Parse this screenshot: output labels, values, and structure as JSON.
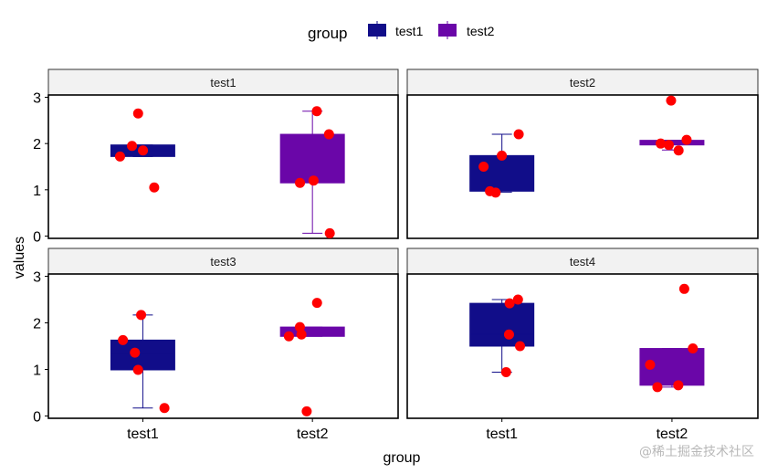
{
  "chart_data": {
    "type": "boxplot",
    "facet_by": "facet",
    "facets": [
      "test1",
      "test2",
      "test3",
      "test4"
    ],
    "categories": [
      "test1",
      "test2"
    ],
    "xlabel": "group",
    "ylabel": "values",
    "ylim": [
      -0.05,
      3.05
    ],
    "yticks": [
      0,
      1,
      2,
      3
    ],
    "legend": {
      "title": "group",
      "position": "top",
      "entries": [
        {
          "label": "test1",
          "color": "#110D89"
        },
        {
          "label": "test2",
          "color": "#6A06A8"
        }
      ]
    },
    "boxes": [
      {
        "facet": "test1",
        "group": "test1",
        "q1": 1.72,
        "median": 1.85,
        "q3": 1.97,
        "whisker_low": 1.72,
        "whisker_high": 1.97
      },
      {
        "facet": "test1",
        "group": "test2",
        "q1": 1.15,
        "median": 1.2,
        "q3": 2.2,
        "whisker_low": 0.06,
        "whisker_high": 2.7
      },
      {
        "facet": "test2",
        "group": "test1",
        "q1": 0.97,
        "median": 1.5,
        "q3": 1.74,
        "whisker_low": 0.95,
        "whisker_high": 2.2
      },
      {
        "facet": "test2",
        "group": "test2",
        "q1": 1.97,
        "median": 2.0,
        "q3": 2.07,
        "whisker_low": 1.86,
        "whisker_high": 2.07
      },
      {
        "facet": "test3",
        "group": "test1",
        "q1": 0.99,
        "median": 1.35,
        "q3": 1.63,
        "whisker_low": 0.17,
        "whisker_high": 2.17
      },
      {
        "facet": "test3",
        "group": "test2",
        "q1": 1.71,
        "median": 1.85,
        "q3": 1.91,
        "whisker_low": 1.71,
        "whisker_high": 1.91
      },
      {
        "facet": "test4",
        "group": "test1",
        "q1": 1.5,
        "median": 1.75,
        "q3": 2.42,
        "whisker_low": 0.94,
        "whisker_high": 2.5
      },
      {
        "facet": "test4",
        "group": "test2",
        "q1": 0.66,
        "median": 1.1,
        "q3": 1.45,
        "whisker_low": 0.62,
        "whisker_high": 1.45
      }
    ],
    "points": [
      {
        "facet": "test1",
        "group": "test1",
        "values": [
          1.05,
          1.95,
          1.85,
          1.72,
          2.65
        ]
      },
      {
        "facet": "test1",
        "group": "test2",
        "values": [
          1.2,
          2.7,
          2.2,
          1.15,
          0.06
        ]
      },
      {
        "facet": "test2",
        "group": "test1",
        "values": [
          0.94,
          1.5,
          0.97,
          2.2,
          1.74
        ]
      },
      {
        "facet": "test2",
        "group": "test2",
        "values": [
          2.0,
          1.85,
          2.08,
          1.97,
          2.93
        ]
      },
      {
        "facet": "test3",
        "group": "test1",
        "values": [
          0.17,
          1.63,
          0.99,
          2.17,
          1.36
        ]
      },
      {
        "facet": "test3",
        "group": "test2",
        "values": [
          2.43,
          1.71,
          1.91,
          1.75,
          0.1
        ]
      },
      {
        "facet": "test4",
        "group": "test1",
        "values": [
          2.42,
          2.5,
          0.94,
          1.5,
          1.75
        ]
      },
      {
        "facet": "test4",
        "group": "test2",
        "values": [
          1.1,
          0.62,
          2.73,
          1.45,
          0.66
        ]
      }
    ],
    "colors": {
      "test1": "#110D89",
      "test2": "#6A06A8",
      "points": "#FF0000"
    },
    "grid": false
  },
  "watermark": "@稀土掘金技术社区"
}
